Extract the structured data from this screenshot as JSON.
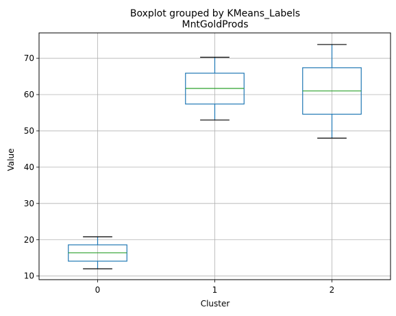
{
  "chart_data": {
    "type": "boxplot",
    "suptitle": "Boxplot grouped by KMeans_Labels",
    "title": "MntGoldProds",
    "xlabel": "Cluster",
    "ylabel": "Value",
    "categories": [
      "0",
      "1",
      "2"
    ],
    "ylim": [
      9,
      77
    ],
    "yticks": [
      10,
      20,
      30,
      40,
      50,
      60,
      70
    ],
    "grid": true,
    "boxes": [
      {
        "category": "0",
        "whisker_low": 12,
        "q1": 14.1,
        "median": 16.4,
        "q3": 18.6,
        "whisker_high": 20.8
      },
      {
        "category": "1",
        "whisker_low": 53,
        "q1": 57.4,
        "median": 61.7,
        "q3": 65.9,
        "whisker_high": 70.3
      },
      {
        "category": "2",
        "whisker_low": 48,
        "q1": 54.6,
        "median": 61,
        "q3": 67.4,
        "whisker_high": 73.8
      }
    ],
    "colors": {
      "box": "#1f77b4",
      "median": "#2ca02c",
      "whisker": "#1f77b4",
      "cap": "#000000",
      "grid": "#b0b0b0"
    }
  }
}
